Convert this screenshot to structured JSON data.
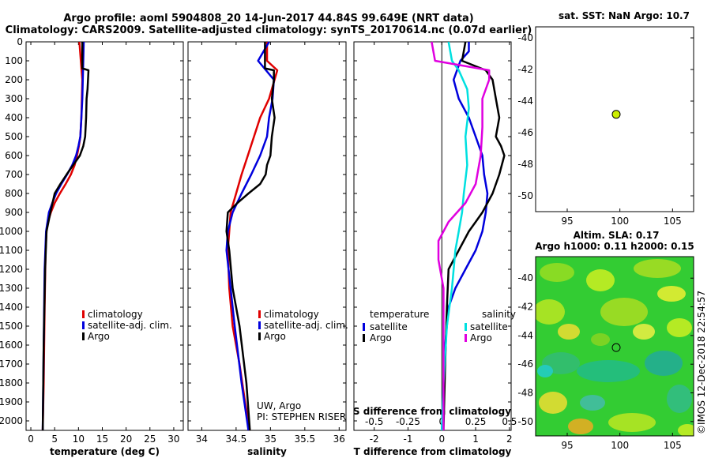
{
  "header": {
    "title_line1": "Argo profile: aoml 5904808_20 14-Jun-2017 44.84S 99.649E (NRT data)",
    "title_line2": "Climatology: CARS2009. Satellite-adjusted climatology: synTS_20170614.nc (0.07d earlier)"
  },
  "colors": {
    "climatology": "#e00000",
    "satellite": "#0000dd",
    "argo": "#000000",
    "satellite_s": "#00e0e0",
    "argo_s": "#e000e0",
    "marker": "#ccee00"
  },
  "depth_axis": {
    "ticks": [
      "0",
      "100",
      "200",
      "300",
      "400",
      "500",
      "600",
      "700",
      "800",
      "900",
      "1000",
      "1100",
      "1200",
      "1300",
      "1400",
      "1500",
      "1600",
      "1700",
      "1800",
      "1900",
      "2000"
    ],
    "range": [
      0,
      2050
    ]
  },
  "chart_data": [
    {
      "type": "line",
      "id": "temperature",
      "xlabel": "temperature (deg C)",
      "xlim": [
        -1,
        32
      ],
      "xticks": [
        "0",
        "5",
        "10",
        "15",
        "20",
        "25",
        "30"
      ],
      "legend": [
        "climatology",
        "satellite-adj. clim.",
        "Argo"
      ],
      "series": [
        {
          "name": "climatology",
          "key": "climatology",
          "x": [
            10.2,
            10.5,
            10.8,
            10.7,
            10.6,
            10.4,
            10.1,
            9.7,
            9.2,
            8.4,
            7.3,
            6.1,
            5.0,
            4.2,
            3.6,
            3.3,
            3.1,
            2.9,
            2.7,
            2.5
          ],
          "y": [
            0,
            100,
            200,
            300,
            400,
            500,
            550,
            600,
            650,
            700,
            750,
            800,
            850,
            900,
            950,
            1000,
            1100,
            1400,
            1800,
            2050
          ]
        },
        {
          "name": "satellite-adj. clim.",
          "key": "satellite",
          "x": [
            11.1,
            11.0,
            10.9,
            10.8,
            10.6,
            10.4,
            10.0,
            9.5,
            8.7,
            7.6,
            6.4,
            5.3,
            4.5,
            3.8,
            3.2,
            2.9,
            2.7,
            2.5
          ],
          "y": [
            0,
            100,
            200,
            300,
            400,
            500,
            550,
            600,
            650,
            700,
            750,
            800,
            850,
            900,
            1000,
            1200,
            1600,
            2050
          ]
        },
        {
          "name": "Argo",
          "key": "argo",
          "x": [
            10.8,
            10.8,
            12.1,
            11.9,
            11.7,
            11.6,
            11.5,
            11.4,
            11.0,
            10.3,
            8.9,
            7.5,
            6.2,
            5.0,
            4.1,
            3.3,
            3.0,
            2.7,
            2.5
          ],
          "y": [
            0,
            140,
            150,
            250,
            300,
            400,
            450,
            500,
            550,
            600,
            650,
            700,
            750,
            800,
            900,
            1000,
            1200,
            1600,
            2050
          ]
        }
      ]
    },
    {
      "type": "line",
      "id": "salinity",
      "xlabel": "salinity",
      "xlim": [
        33.8,
        36.1
      ],
      "xticks": [
        "34",
        "34.5",
        "35",
        "35.5",
        "36"
      ],
      "legend": [
        "climatology",
        "satellite-adj. clim.",
        "Argo"
      ],
      "annotation": [
        "UW, Argo",
        "PI: STEPHEN RISER"
      ],
      "series": [
        {
          "name": "climatology",
          "key": "climatology",
          "x": [
            34.95,
            34.95,
            35.1,
            34.98,
            34.85,
            34.76,
            34.67,
            34.58,
            34.5,
            34.42,
            34.4,
            34.38,
            34.4,
            34.45,
            34.55,
            34.63,
            34.7
          ],
          "y": [
            0,
            100,
            150,
            300,
            400,
            500,
            600,
            700,
            800,
            900,
            1000,
            1100,
            1300,
            1500,
            1700,
            1900,
            2050
          ]
        },
        {
          "name": "satellite-adj. clim.",
          "key": "satellite",
          "x": [
            34.98,
            34.82,
            35.05,
            35.03,
            34.98,
            34.95,
            34.85,
            34.72,
            34.58,
            34.45,
            34.38,
            34.36,
            34.42,
            34.48,
            34.58,
            34.68
          ],
          "y": [
            0,
            100,
            200,
            300,
            400,
            500,
            600,
            700,
            800,
            900,
            1000,
            1100,
            1300,
            1500,
            1800,
            2050
          ]
        },
        {
          "name": "Argo",
          "key": "argo",
          "x": [
            34.92,
            34.92,
            35.05,
            35.05,
            35.02,
            35.06,
            35.02,
            35.0,
            34.95,
            34.93,
            34.85,
            34.68,
            34.52,
            34.38,
            34.36,
            34.4,
            34.45,
            34.55,
            34.65,
            34.7
          ],
          "y": [
            0,
            140,
            150,
            200,
            300,
            400,
            500,
            600,
            650,
            700,
            750,
            800,
            850,
            900,
            1000,
            1100,
            1300,
            1500,
            1800,
            2050
          ]
        }
      ]
    },
    {
      "type": "line",
      "id": "difference",
      "xlabel": "T difference from climatology",
      "xlabel_top": "S difference from climatology",
      "xlim": [
        -2.6,
        2.05
      ],
      "xticks": [
        "-2",
        "-1",
        "0",
        "1",
        "2"
      ],
      "xticks_top": [
        "-0.5",
        "-0.25",
        "0",
        "0.25",
        "0.5"
      ],
      "legend_left": {
        "title": "temperature",
        "items": [
          "satellite",
          "Argo"
        ]
      },
      "legend_right": {
        "title": "salinity",
        "items": [
          "satellite",
          "Argo"
        ]
      },
      "series": [
        {
          "name": "temperature satellite",
          "key": "satellite",
          "x": [
            0.8,
            0.8,
            0.55,
            0.35,
            0.5,
            0.8,
            1.0,
            1.2,
            1.25,
            1.35,
            1.3,
            1.2,
            1.0,
            0.7,
            0.4,
            0.2,
            0.1,
            0.05,
            0.0
          ],
          "y": [
            0,
            50,
            100,
            200,
            300,
            400,
            500,
            600,
            700,
            800,
            900,
            1000,
            1100,
            1200,
            1300,
            1400,
            1600,
            1800,
            2050
          ]
        },
        {
          "name": "temperature Argo",
          "key": "argo",
          "x": [
            0.7,
            0.6,
            1.3,
            1.5,
            1.6,
            1.7,
            1.6,
            1.75,
            1.85,
            1.7,
            1.5,
            1.2,
            1.0,
            0.8,
            0.5,
            0.2,
            0.15,
            0.1,
            0.05
          ],
          "y": [
            0,
            100,
            150,
            200,
            300,
            400,
            500,
            550,
            600,
            700,
            800,
            900,
            950,
            1000,
            1100,
            1200,
            1400,
            1700,
            2050
          ]
        },
        {
          "name": "salinity satellite",
          "key": "satellite_s",
          "x": [
            0.2,
            0.3,
            0.5,
            0.75,
            0.8,
            0.7,
            0.75,
            0.65,
            0.6,
            0.5,
            0.4,
            0.3,
            0.15,
            0.05,
            0.0
          ],
          "y": [
            0,
            100,
            150,
            250,
            350,
            500,
            650,
            800,
            900,
            1000,
            1100,
            1300,
            1500,
            1800,
            2050
          ]
        },
        {
          "name": "salinity Argo",
          "key": "argo_s",
          "x": [
            -0.3,
            -0.2,
            1.4,
            1.4,
            1.2,
            1.2,
            1.15,
            1.0,
            0.7,
            0.2,
            -0.1,
            -0.1,
            0.05,
            0.05
          ],
          "y": [
            0,
            100,
            150,
            200,
            300,
            450,
            600,
            750,
            850,
            950,
            1050,
            1150,
            1300,
            2050
          ]
        }
      ]
    },
    {
      "type": "scatter",
      "id": "sst_map",
      "title": "sat. SST: NaN Argo: 10.7",
      "xticks": [
        "95",
        "100",
        "105"
      ],
      "yticks": [
        "-40",
        "-42",
        "-44",
        "-46",
        "-48",
        "-50"
      ],
      "xlim": [
        92,
        107
      ],
      "ylim": [
        -51,
        -39.3
      ],
      "points": [
        {
          "x": 99.65,
          "y": -44.84
        }
      ]
    },
    {
      "type": "heatmap",
      "id": "sla_map",
      "title_line1": "Altim. SLA: 0.17",
      "title_line2": "Argo h1000: 0.11 h2000: 0.15",
      "xticks": [
        "95",
        "100",
        "105"
      ],
      "yticks": [
        "-40",
        "-42",
        "-44",
        "-46",
        "-48",
        "-50"
      ],
      "xlim": [
        92,
        107
      ],
      "ylim": [
        -51,
        -38.5
      ],
      "points": [
        {
          "x": 99.65,
          "y": -44.84
        }
      ]
    }
  ],
  "footer": {
    "credit": "©IMOS 12-Dec-2018 22:54:57"
  }
}
